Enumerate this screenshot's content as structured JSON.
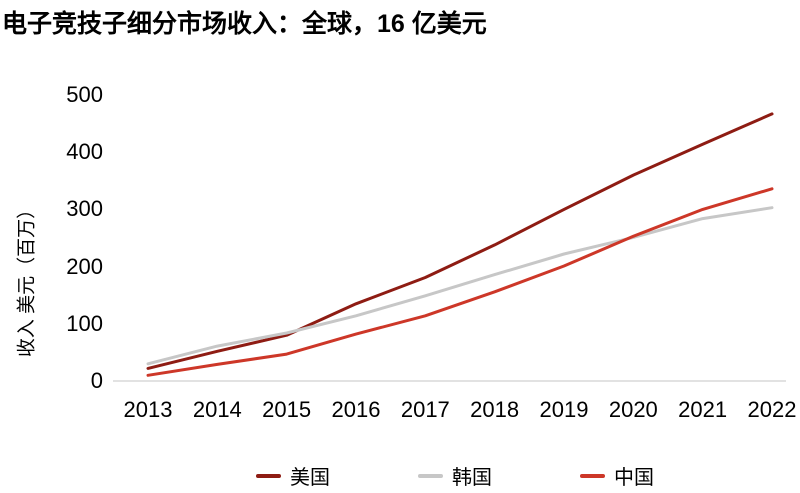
{
  "chart_data": {
    "type": "line",
    "title": "电子竞技子细分市场收入：全球，16 亿美元",
    "ylabel": "收入 美元（百万）",
    "xlabel": "",
    "ylim": [
      0,
      500
    ],
    "y_ticks": [
      0,
      100,
      200,
      300,
      400,
      500
    ],
    "categories": [
      "2013",
      "2014",
      "2015",
      "2016",
      "2017",
      "2018",
      "2019",
      "2020",
      "2021",
      "2022"
    ],
    "grid": false,
    "legend_position": "bottom",
    "axis_color": "#d9d9d9",
    "text_color": "#000000",
    "series": [
      {
        "name": "美国",
        "key": "usa",
        "color": "#8e1c13",
        "values": [
          22,
          52,
          80,
          135,
          181,
          238,
          300,
          360,
          414,
          467
        ]
      },
      {
        "name": "韩国",
        "key": "south-korea",
        "color": "#c7c7c7",
        "values": [
          30,
          61,
          84,
          114,
          149,
          186,
          222,
          251,
          284,
          303
        ]
      },
      {
        "name": "中国",
        "key": "china",
        "color": "#cd3728",
        "values": [
          10,
          29,
          47,
          82,
          114,
          156,
          201,
          253,
          300,
          336
        ]
      }
    ]
  }
}
